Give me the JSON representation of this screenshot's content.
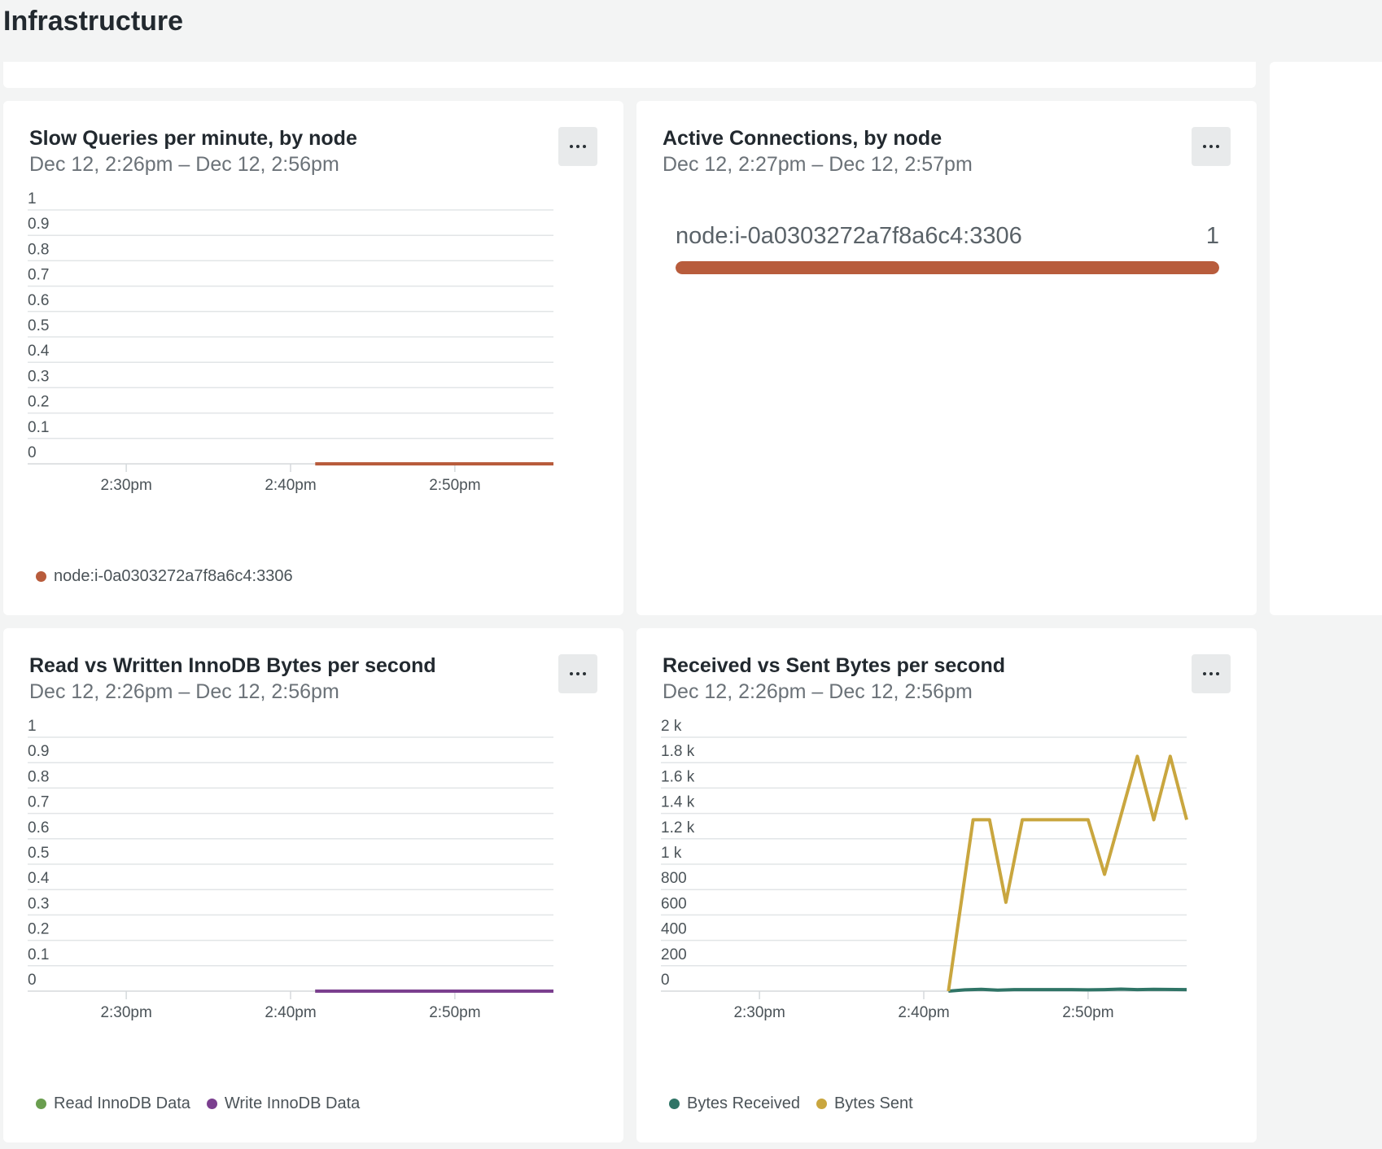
{
  "page": {
    "title": "Infrastructure"
  },
  "panels": [
    {
      "title": "Slow Queries per minute, by node",
      "range": "Dec 12, 2:26pm – Dec 12, 2:56pm",
      "more_label": "...",
      "legend": [
        {
          "label": "node:i-0a0303272a7f8a6c4:3306",
          "color": "#b85c3c"
        }
      ]
    },
    {
      "title": "Active Connections, by node",
      "range": "Dec 12, 2:27pm – Dec 12, 2:57pm",
      "more_label": "...",
      "bar": {
        "label": "node:i-0a0303272a7f8a6c4:3306",
        "value": "1",
        "fraction": 1.0,
        "color": "#b85c3c"
      }
    },
    {
      "title": "Read vs Written InnoDB Bytes per second",
      "range": "Dec 12, 2:26pm – Dec 12, 2:56pm",
      "more_label": "...",
      "legend": [
        {
          "label": "Read InnoDB Data",
          "color": "#6a9e4f"
        },
        {
          "label": "Write InnoDB Data",
          "color": "#7b3f8f"
        }
      ]
    },
    {
      "title": "Received vs Sent Bytes per second",
      "range": "Dec 12, 2:26pm – Dec 12, 2:56pm",
      "more_label": "...",
      "legend": [
        {
          "label": "Bytes Received",
          "color": "#2f7466"
        },
        {
          "label": "Bytes Sent",
          "color": "#c9a63f"
        }
      ]
    }
  ],
  "chart_data": [
    {
      "type": "line",
      "title": "Slow Queries per minute, by node",
      "x_start": "2:24pm",
      "x_end": "2:56pm",
      "x_ticks": [
        "2:30pm",
        "2:40pm",
        "2:50pm"
      ],
      "y_ticks": [
        "1",
        "0.9",
        "0.8",
        "0.7",
        "0.6",
        "0.5",
        "0.4",
        "0.3",
        "0.2",
        "0.1",
        "0"
      ],
      "ylim": [
        0,
        1
      ],
      "grid": true,
      "legend_position": "bottom-left",
      "series": [
        {
          "name": "node:i-0a0303272a7f8a6c4:3306",
          "color": "#b85c3c",
          "x": [
            "2:41:30pm",
            "2:56pm"
          ],
          "y": [
            0,
            0
          ]
        }
      ]
    },
    {
      "type": "bar",
      "title": "Active Connections, by node",
      "categories": [
        "node:i-0a0303272a7f8a6c4:3306"
      ],
      "values": [
        1
      ]
    },
    {
      "type": "line",
      "title": "Read vs Written InnoDB Bytes per second",
      "x_start": "2:24pm",
      "x_end": "2:56pm",
      "x_ticks": [
        "2:30pm",
        "2:40pm",
        "2:50pm"
      ],
      "y_ticks": [
        "1",
        "0.9",
        "0.8",
        "0.7",
        "0.6",
        "0.5",
        "0.4",
        "0.3",
        "0.2",
        "0.1",
        "0"
      ],
      "ylim": [
        0,
        1
      ],
      "grid": true,
      "legend_position": "bottom-left",
      "series": [
        {
          "name": "Read InnoDB Data",
          "color": "#6a9e4f",
          "x": [
            "2:41:30pm",
            "2:56pm"
          ],
          "y": [
            0,
            0
          ]
        },
        {
          "name": "Write InnoDB Data",
          "color": "#7b3f8f",
          "x": [
            "2:41:30pm",
            "2:56pm"
          ],
          "y": [
            0,
            0
          ]
        }
      ]
    },
    {
      "type": "line",
      "title": "Received vs Sent Bytes per second",
      "x_start": "2:24pm",
      "x_end": "2:56pm",
      "x_ticks": [
        "2:30pm",
        "2:40pm",
        "2:50pm"
      ],
      "y_ticks": [
        "2 k",
        "1.8 k",
        "1.6 k",
        "1.4 k",
        "1.2 k",
        "1 k",
        "800",
        "600",
        "400",
        "200",
        "0"
      ],
      "ylim": [
        0,
        2000
      ],
      "grid": true,
      "legend_position": "bottom-left",
      "series": [
        {
          "name": "Bytes Received",
          "color": "#2f7466",
          "x": [
            "2:41:30pm",
            "2:42:30pm",
            "2:43:30pm",
            "2:44:30pm",
            "2:45:30pm",
            "2:47pm",
            "2:49pm",
            "2:50pm",
            "2:51pm",
            "2:52pm",
            "2:53pm",
            "2:54pm",
            "2:56pm"
          ],
          "y": [
            0,
            10,
            15,
            8,
            12,
            12,
            12,
            10,
            12,
            16,
            12,
            15,
            12
          ]
        },
        {
          "name": "Bytes Sent",
          "color": "#c9a63f",
          "x": [
            "2:41:30pm",
            "2:43pm",
            "2:44pm",
            "2:45pm",
            "2:46pm",
            "2:48pm",
            "2:50pm",
            "2:51pm",
            "2:53pm",
            "2:54pm",
            "2:55pm",
            "2:56pm"
          ],
          "y": [
            0,
            1350,
            1350,
            700,
            1350,
            1350,
            1350,
            920,
            1850,
            1350,
            1850,
            1350
          ]
        }
      ]
    }
  ]
}
